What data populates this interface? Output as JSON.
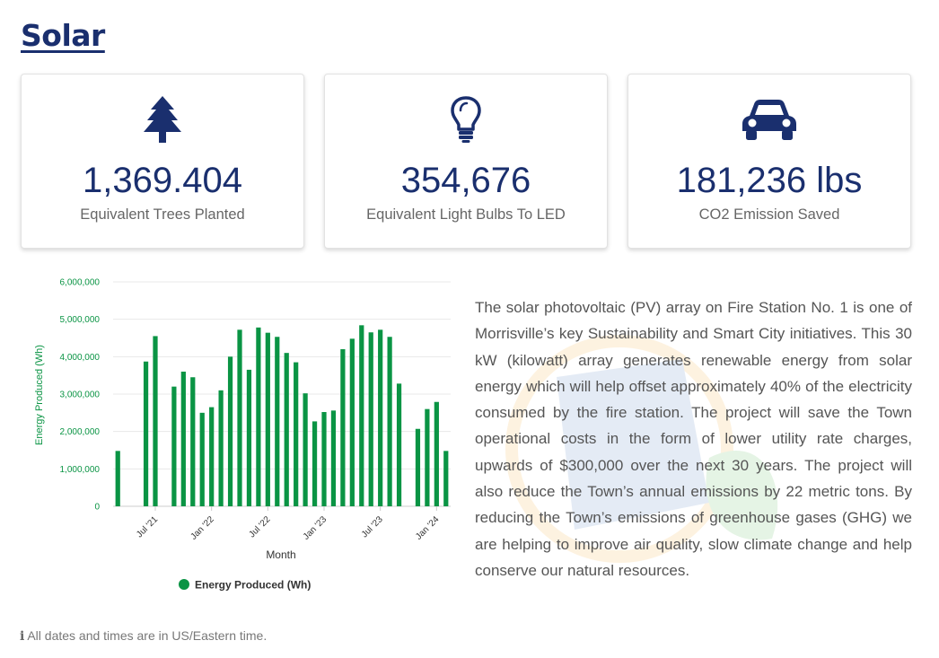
{
  "page": {
    "title": "Solar"
  },
  "stats": [
    {
      "icon": "tree-icon",
      "value": "1,369.404",
      "label": "Equivalent Trees Planted"
    },
    {
      "icon": "lightbulb-icon",
      "value": "354,676",
      "label": "Equivalent Light Bulbs To LED"
    },
    {
      "icon": "car-icon",
      "value": "181,236 lbs",
      "label": "CO2 Emission Saved"
    }
  ],
  "description": "The solar photovoltaic (PV) array on Fire Station No. 1 is one of Morrisville’s key Sustainability and Smart City initiatives. This 30 kW (kilowatt) array generates renewable energy from solar energy which will help offset approximately 40% of the electricity consumed by the fire station. The project will save the Town operational costs in the form of lower utility rate charges, upwards of $300,000 over the next 30 years. The project will also reduce the Town’s annual emissions by 22 metric tons. By reducing the Town’s emissions of greenhouse gases (GHG) we are helping to improve air quality, slow climate change and help conserve our natural resources.",
  "footnote": "All dates and times are in US/Eastern time.",
  "colors": {
    "brand": "#1a2f6e",
    "bar": "#0a9444"
  },
  "chart_data": {
    "type": "bar",
    "title": "",
    "xlabel": "Month",
    "ylabel": "Energy Produced (Wh)",
    "ylim": [
      0,
      6000000
    ],
    "yticks": [
      0,
      1000000,
      2000000,
      3000000,
      4000000,
      5000000,
      6000000
    ],
    "ytick_labels": [
      "0",
      "1,000,000",
      "2,000,000",
      "3,000,000",
      "4,000,000",
      "5,000,000",
      "6,000,000"
    ],
    "xtick_labels": [
      {
        "label": "Jul '21",
        "at": "2021-07"
      },
      {
        "label": "Jan '22",
        "at": "2022-01"
      },
      {
        "label": "Jul '22",
        "at": "2022-07"
      },
      {
        "label": "Jan '23",
        "at": "2023-01"
      },
      {
        "label": "Jul '23",
        "at": "2023-07"
      },
      {
        "label": "Jan '24",
        "at": "2024-01"
      }
    ],
    "grid": true,
    "legend": "bottom",
    "series": [
      {
        "name": "Energy Produced (Wh)",
        "color": "#0a9444",
        "points": [
          [
            "2021-03",
            1480000
          ],
          [
            "2021-04",
            0
          ],
          [
            "2021-05",
            0
          ],
          [
            "2021-06",
            3870000
          ],
          [
            "2021-07",
            4550000
          ],
          [
            "2021-08",
            0
          ],
          [
            "2021-09",
            3200000
          ],
          [
            "2021-10",
            3600000
          ],
          [
            "2021-11",
            3450000
          ],
          [
            "2021-12",
            2500000
          ],
          [
            "2022-01",
            2650000
          ],
          [
            "2022-02",
            3100000
          ],
          [
            "2022-03",
            4000000
          ],
          [
            "2022-04",
            4720000
          ],
          [
            "2022-05",
            3650000
          ],
          [
            "2022-06",
            4780000
          ],
          [
            "2022-07",
            4640000
          ],
          [
            "2022-08",
            4530000
          ],
          [
            "2022-09",
            4100000
          ],
          [
            "2022-10",
            3850000
          ],
          [
            "2022-11",
            3020000
          ],
          [
            "2022-12",
            2270000
          ],
          [
            "2023-01",
            2520000
          ],
          [
            "2023-02",
            2560000
          ],
          [
            "2023-03",
            4200000
          ],
          [
            "2023-04",
            4480000
          ],
          [
            "2023-05",
            4840000
          ],
          [
            "2023-06",
            4650000
          ],
          [
            "2023-07",
            4720000
          ],
          [
            "2023-08",
            4530000
          ],
          [
            "2023-09",
            3280000
          ],
          [
            "2023-10",
            0
          ],
          [
            "2023-11",
            2070000
          ],
          [
            "2023-12",
            2600000
          ],
          [
            "2024-01",
            2790000
          ],
          [
            "2024-02",
            1480000
          ]
        ]
      }
    ]
  }
}
